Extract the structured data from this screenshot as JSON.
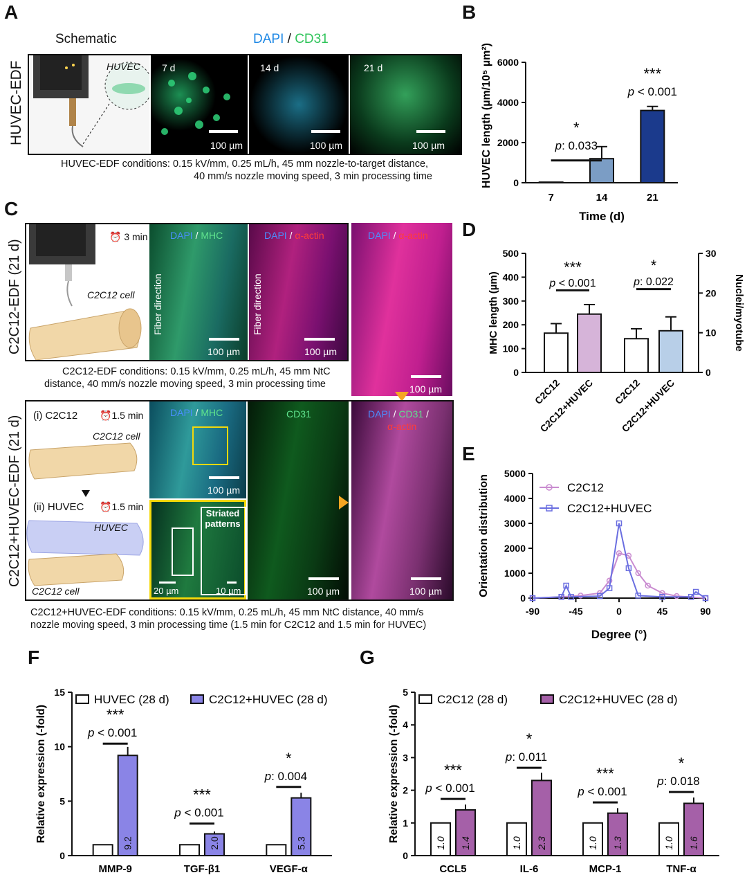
{
  "letters": {
    "a": "A",
    "b": "B",
    "c": "C",
    "d": "D",
    "e": "E",
    "f": "F",
    "g": "G"
  },
  "panelA": {
    "schematic_title": "Schematic",
    "stain_dapi": "DAPI",
    "stain_sep": " / ",
    "stain_cd31": "CD31",
    "row_label": "HUVEC-EDF",
    "cell_label": "HUVEC",
    "days": [
      "7 d",
      "14 d",
      "21 d"
    ],
    "scale": "100 µm",
    "conditions_line1": "HUVEC-EDF conditions: 0.15 kV/mm, 0.25 mL/h, 45 mm nozzle-to-target distance,",
    "conditions_line2": "40 mm/s nozzle moving speed, 3 min processing time"
  },
  "panelB": {
    "chart_data": {
      "type": "bar",
      "categories": [
        "7",
        "14",
        "21"
      ],
      "values": [
        30,
        1200,
        3600
      ],
      "errors": [
        0,
        600,
        200
      ],
      "xlabel": "Time (d)",
      "ylabel": "HUVEC length  (µm/10⁵ µm²)",
      "ylim": [
        0,
        6000
      ],
      "yticks": [
        "0",
        "2000",
        "4000",
        "6000"
      ],
      "colors": [
        "#ffffff",
        "#7b9dc5",
        "#1b3a8c"
      ],
      "annotations": [
        {
          "stars": "*",
          "p": "p: 0.033"
        },
        {
          "stars": "***",
          "p": "p < 0.001"
        }
      ]
    }
  },
  "panelC": {
    "row1_label": "C2C12-EDF (21 d)",
    "row2_label": "C2C12+HUVEC-EDF (21 d)",
    "time_3": "3 min",
    "time_15a": "1.5 min",
    "time_15b": "1.5 min",
    "cell_c2c12": "C2C12 cell",
    "step_i": "(i) C2C12",
    "step_ii": "(ii) HUVEC",
    "huvec": "HUVEC",
    "fiber_dir": "Fiber direction",
    "dapi": "DAPI",
    "mhc": "MHC",
    "actin": "α-actin",
    "cd31": "CD31",
    "striated": "Striated patterns",
    "scale100": "100 µm",
    "scale20": "20 µm",
    "scale10": "10 µm",
    "cond1_line1": "C2C12-EDF conditions: 0.15 kV/mm, 0.25 mL/h, 45 mm NtC",
    "cond1_line2": "distance, 40 mm/s nozzle moving speed, 3 min processing time",
    "cond2_line1": "C2C12+HUVEC-EDF conditions: 0.15 kV/mm, 0.25 mL/h, 45 mm NtC distance, 40 mm/s",
    "cond2_line2": "nozzle moving speed, 3 min processing time (1.5 min for C2C12 and 1.5 min for HUVEC)"
  },
  "panelD": {
    "chart_data": {
      "type": "bar",
      "categories": [
        "C2C12",
        "C2C12+HUVEC",
        "C2C12",
        "C2C12+HUVEC"
      ],
      "left": {
        "ylabel": "MHC length  (µm)",
        "ylim": [
          0,
          500
        ],
        "yticks": [
          "0",
          "100",
          "200",
          "300",
          "400",
          "500"
        ],
        "values": [
          165,
          245
        ],
        "errors": [
          40,
          40
        ]
      },
      "right": {
        "ylabel": "Nuclei/myotube",
        "ylim": [
          0,
          30
        ],
        "yticks": [
          "0",
          "10",
          "20",
          "30"
        ],
        "values": [
          8.5,
          10.5
        ],
        "errors": [
          2.5,
          3.5
        ]
      },
      "colors": [
        "#b06ab3",
        "#6b96c6"
      ],
      "annotations": [
        {
          "stars": "***",
          "p": "p < 0.001"
        },
        {
          "stars": "*",
          "p": "p: 0.022"
        }
      ]
    }
  },
  "panelE": {
    "chart_data": {
      "type": "line",
      "xlabel": "Degree (°)",
      "ylabel": "Orientation distribution",
      "xlim": [
        -90,
        90
      ],
      "ylim": [
        0,
        5000
      ],
      "xticks": [
        "-90",
        "-45",
        "0",
        "45",
        "90"
      ],
      "yticks": [
        "0",
        "1000",
        "2000",
        "3000",
        "4000",
        "5000"
      ],
      "series": [
        {
          "name": "C2C12",
          "color": "#c98bd0",
          "x": [
            -90,
            -60,
            -40,
            -20,
            -10,
            0,
            10,
            20,
            30,
            45,
            60,
            90
          ],
          "y": [
            0,
            50,
            100,
            200,
            700,
            1800,
            1700,
            1000,
            500,
            200,
            80,
            0
          ]
        },
        {
          "name": "C2C12+HUVEC",
          "color": "#6a6ee0",
          "x": [
            -90,
            -60,
            -55,
            -50,
            -20,
            -10,
            0,
            10,
            20,
            45,
            75,
            80,
            90
          ],
          "y": [
            0,
            50,
            500,
            50,
            80,
            400,
            3000,
            1200,
            100,
            50,
            50,
            250,
            0
          ]
        }
      ]
    }
  },
  "panelF": {
    "chart_data": {
      "type": "bar",
      "categories": [
        "MMP-9",
        "TGF-β1",
        "VEGF-α"
      ],
      "series": [
        {
          "name": "HUVEC (28 d)",
          "values": [
            1.0,
            1.0,
            1.0
          ],
          "color": "#ffffff"
        },
        {
          "name": "C2C12+HUVEC (28 d)",
          "values": [
            9.2,
            2.0,
            5.3
          ],
          "color": "#8a84e6"
        }
      ],
      "value_labels": [
        "9.2",
        "2.0",
        "5.3"
      ],
      "ylabel": "Relative expression (-fold)",
      "ylim": [
        0,
        15
      ],
      "yticks": [
        "0",
        "5",
        "10",
        "15"
      ],
      "annotations": [
        {
          "stars": "***",
          "p": "p < 0.001"
        },
        {
          "stars": "***",
          "p": "p  < 0.001"
        },
        {
          "stars": "*",
          "p": "p: 0.004"
        }
      ]
    }
  },
  "panelG": {
    "chart_data": {
      "type": "bar",
      "categories": [
        "CCL5",
        "IL-6",
        "MCP-1",
        "TNF-α"
      ],
      "series": [
        {
          "name": "C2C12 (28 d)",
          "values": [
            1.0,
            1.0,
            1.0,
            1.0
          ],
          "color": "#ffffff"
        },
        {
          "name": "C2C12+HUVEC (28 d)",
          "values": [
            1.4,
            2.3,
            1.3,
            1.6
          ],
          "color": "#a560a8"
        }
      ],
      "value_labels_a": [
        "1.0",
        "1.0",
        "1.0",
        "1.0"
      ],
      "value_labels_b": [
        "1.4",
        "2.3",
        "1.3",
        "1.6"
      ],
      "ylabel": "Relative expression (-fold)",
      "ylim": [
        0,
        5
      ],
      "yticks": [
        "0",
        "1",
        "2",
        "3",
        "4",
        "5"
      ],
      "annotations": [
        {
          "stars": "***",
          "p": "p < 0.001"
        },
        {
          "stars": "*",
          "p": "p: 0.011"
        },
        {
          "stars": "***",
          "p": "p < 0.001"
        },
        {
          "stars": "*",
          "p": "p: 0.018"
        }
      ]
    }
  }
}
